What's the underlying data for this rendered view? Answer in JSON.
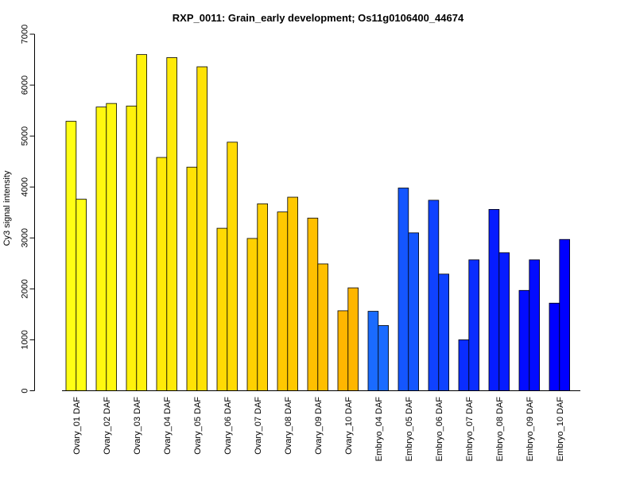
{
  "chart_data": {
    "type": "bar",
    "title": "RXP_0011: Grain_early development; Os11g0106400_44674",
    "xlabel": "",
    "ylabel": "Cy3 signal intensity",
    "ylim": [
      0,
      7000
    ],
    "yticks": [
      0,
      1000,
      2000,
      3000,
      4000,
      5000,
      6000,
      7000
    ],
    "grid": false,
    "legend": "none",
    "bars_per_category": 2,
    "categories": [
      "Ovary_01 DAF",
      "Ovary_02 DAF",
      "Ovary_03 DAF",
      "Ovary_04 DAF",
      "Ovary_05 DAF",
      "Ovary_06 DAF",
      "Ovary_07 DAF",
      "Ovary_08 DAF",
      "Ovary_09 DAF",
      "Ovary_10 DAF",
      "Embryo_04 DAF",
      "Embryo_05 DAF",
      "Embryo_06 DAF",
      "Embryo_07 DAF",
      "Embryo_08 DAF",
      "Embryo_09 DAF",
      "Embryo_10 DAF"
    ],
    "values": [
      [
        5290,
        3760
      ],
      [
        5570,
        5640
      ],
      [
        5590,
        6600
      ],
      [
        4580,
        6540
      ],
      [
        4390,
        6360
      ],
      [
        3190,
        4880
      ],
      [
        2990,
        3670
      ],
      [
        3510,
        3800
      ],
      [
        3390,
        2490
      ],
      [
        1570,
        2020
      ],
      [
        1560,
        1280
      ],
      [
        3980,
        3100
      ],
      [
        3740,
        2290
      ],
      [
        1000,
        2570
      ],
      [
        3560,
        2710
      ],
      [
        1970,
        2570
      ],
      [
        1720,
        2970
      ]
    ],
    "colors": [
      "#FFFF14",
      "#FFF80F",
      "#FFF20B",
      "#FFEA08",
      "#FFE205",
      "#FFDA03",
      "#FFD101",
      "#FFC800",
      "#FFBF00",
      "#FFB600",
      "#1A6BFF",
      "#1456FF",
      "#0F42FF",
      "#0A2DFF",
      "#061CFF",
      "#030CFF",
      "#0000FF"
    ]
  }
}
